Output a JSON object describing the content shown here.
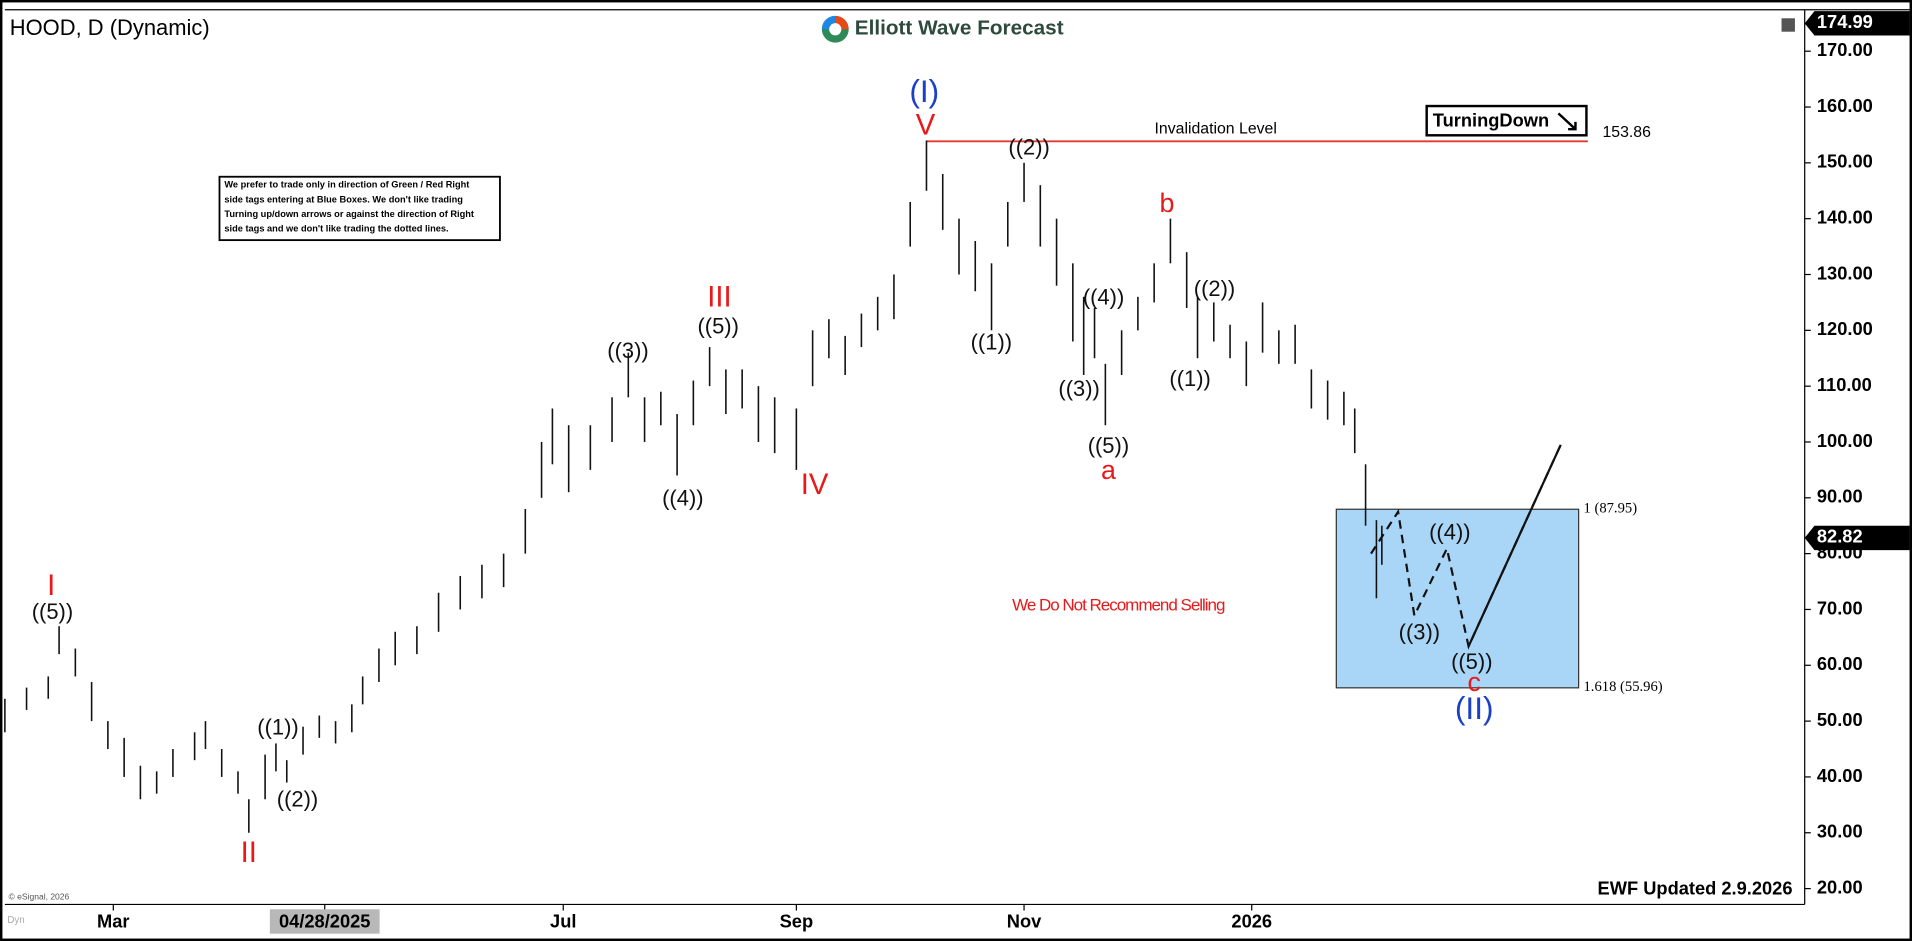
{
  "chart_data": {
    "type": "ohlc",
    "title": "HOOD, D (Dynamic)",
    "logo": "Elliott Wave Forecast",
    "bars": {
      "x": [
        0,
        4,
        8,
        10,
        13,
        16,
        19,
        22,
        25,
        28,
        31,
        35,
        37,
        40,
        43,
        45,
        48,
        50,
        52,
        55,
        58,
        61,
        64,
        66,
        69,
        72,
        76,
        80,
        84,
        88,
        92,
        96,
        99,
        101,
        104,
        108,
        112,
        115,
        118,
        121,
        124,
        127,
        130,
        133,
        136,
        139,
        142,
        146,
        149,
        152,
        155,
        158,
        161,
        164,
        167,
        170,
        173,
        176,
        179,
        182,
        185,
        188,
        191,
        194,
        197,
        199,
        201,
        203,
        206,
        209,
        212,
        215,
        218,
        220,
        223,
        226,
        229,
        232,
        235,
        238,
        241,
        244,
        247,
        249,
        251,
        253,
        254
      ],
      "low": [
        48,
        52,
        54,
        62,
        58,
        50,
        45,
        40,
        36,
        37,
        40,
        43,
        45,
        40,
        37,
        30,
        36,
        41,
        39,
        44,
        47,
        46,
        48,
        53,
        57,
        60,
        62,
        66,
        70,
        72,
        74,
        80,
        90,
        96,
        91,
        95,
        100,
        108,
        100,
        103,
        94,
        103,
        110,
        105,
        106,
        100,
        98,
        95,
        110,
        115,
        112,
        117,
        120,
        122,
        135,
        145,
        138,
        130,
        127,
        120,
        135,
        143,
        135,
        128,
        118,
        112,
        115,
        103,
        112,
        120,
        125,
        132,
        124,
        115,
        118,
        115,
        110,
        116,
        114,
        114,
        106,
        104,
        103,
        98,
        85,
        72,
        78
      ],
      "high": [
        54,
        56,
        58,
        67,
        63,
        57,
        50,
        47,
        42,
        41,
        45,
        48,
        50,
        45,
        41,
        36,
        44,
        46,
        43,
        49,
        51,
        50,
        53,
        58,
        63,
        66,
        67,
        73,
        76,
        78,
        80,
        88,
        100,
        106,
        103,
        103,
        108,
        116,
        108,
        109,
        105,
        111,
        117,
        113,
        113,
        110,
        108,
        106,
        120,
        122,
        119,
        123,
        126,
        130,
        143,
        154,
        148,
        140,
        136,
        132,
        143,
        150,
        146,
        140,
        132,
        126,
        124,
        114,
        120,
        126,
        132,
        140,
        134,
        126,
        125,
        121,
        118,
        125,
        120,
        121,
        113,
        111,
        109,
        106,
        96,
        86,
        85
      ],
      "color": "#111111"
    },
    "xlim": [
      0,
      332
    ],
    "xticks": [
      {
        "value": 20,
        "label": "Mar"
      },
      {
        "value": 59,
        "label": "04/28/2025"
      },
      {
        "value": 103,
        "label": "Jul"
      },
      {
        "value": 146,
        "label": "Sep"
      },
      {
        "value": 188,
        "label": "Nov"
      },
      {
        "value": 230,
        "label": "2026"
      }
    ],
    "xtick_highlight": 1,
    "ylim": [
      15,
      176
    ],
    "yticks": [
      {
        "value": 20,
        "label": "20.00"
      },
      {
        "value": 30,
        "label": "30.00"
      },
      {
        "value": 40,
        "label": "40.00"
      },
      {
        "value": 50,
        "label": "50.00"
      },
      {
        "value": 60,
        "label": "60.00"
      },
      {
        "value": 70,
        "label": "70.00"
      },
      {
        "value": 80,
        "label": "80.00"
      },
      {
        "value": 90,
        "label": "90.00"
      },
      {
        "value": 100,
        "label": "100.00"
      },
      {
        "value": 110,
        "label": "110.00"
      },
      {
        "value": 120,
        "label": "120.00"
      },
      {
        "value": 130,
        "label": "130.00"
      },
      {
        "value": 140,
        "label": "140.00"
      },
      {
        "value": 150,
        "label": "150.00"
      },
      {
        "value": 160,
        "label": "160.00"
      },
      {
        "value": 170,
        "label": "170.00"
      }
    ],
    "price_tags": [
      {
        "value": 174.99,
        "label": "174.99"
      },
      {
        "value": 82.82,
        "label": "82.82"
      }
    ],
    "invalidation": {
      "label": "Invalidation Level",
      "value": 153.86,
      "value_label": "153.86",
      "x": [
        170,
        292
      ],
      "color": "#e53935"
    },
    "fib_box": {
      "x": [
        245.6,
        290.3
      ],
      "values": [
        87.95,
        55.96
      ],
      "labels": [
        "1 (87.95)",
        "1.618 (55.96)"
      ],
      "color": "#a9d6f7"
    },
    "projection": {
      "x": [
        252,
        257,
        260,
        266,
        270,
        287
      ],
      "values": [
        80,
        87.5,
        68.9,
        80.9,
        63.4,
        99.5
      ],
      "color": "#111111"
    },
    "wave_labels": [
      {
        "label": "I",
        "color": "#e8191b"
      },
      {
        "label": "((5))",
        "color": "#111111"
      },
      {
        "label": "II",
        "color": "#e8191b"
      },
      {
        "label": "((1))",
        "color": "#111111"
      },
      {
        "label": "((2))",
        "color": "#111111"
      },
      {
        "label": "((3))",
        "color": "#111111"
      },
      {
        "label": "((4))",
        "color": "#111111"
      },
      {
        "label": "III",
        "color": "#e8191b"
      },
      {
        "label": "((5))",
        "color": "#111111"
      },
      {
        "label": "IV",
        "color": "#e8191b"
      },
      {
        "label": "(I)",
        "color": "#1a3fc9"
      },
      {
        "label": "V",
        "color": "#e8191b"
      },
      {
        "label": "((2))",
        "color": "#111111"
      },
      {
        "label": "((1))",
        "color": "#111111"
      },
      {
        "label": "((4))",
        "color": "#111111"
      },
      {
        "label": "((3))",
        "color": "#111111"
      },
      {
        "label": "((5))",
        "color": "#111111"
      },
      {
        "label": "a",
        "color": "#e8191b"
      },
      {
        "label": "b",
        "color": "#e8191b"
      },
      {
        "label": "((2))",
        "color": "#111111"
      },
      {
        "label": "((1))",
        "color": "#111111"
      },
      {
        "label": "((4))",
        "color": "#111111"
      },
      {
        "label": "((3))",
        "color": "#111111"
      },
      {
        "label": "((5))",
        "color": "#111111"
      },
      {
        "label": "c",
        "color": "#e8191b"
      },
      {
        "label": "(II)",
        "color": "#1a3fc9"
      }
    ],
    "annotations": {
      "note": [
        "We prefer to trade only in direction of Green / Red Right",
        "side tags entering at Blue Boxes. We don't like trading",
        "Turning up/down arrows or against the direction of Right",
        "side tags and we don't like trading the dotted lines."
      ],
      "turning": "TurningDown",
      "warning": "We Do Not Recommend Selling",
      "updated": "EWF Updated 2.9.2026",
      "copyright": "© eSignal, 2026",
      "interval": "Dyn"
    }
  }
}
